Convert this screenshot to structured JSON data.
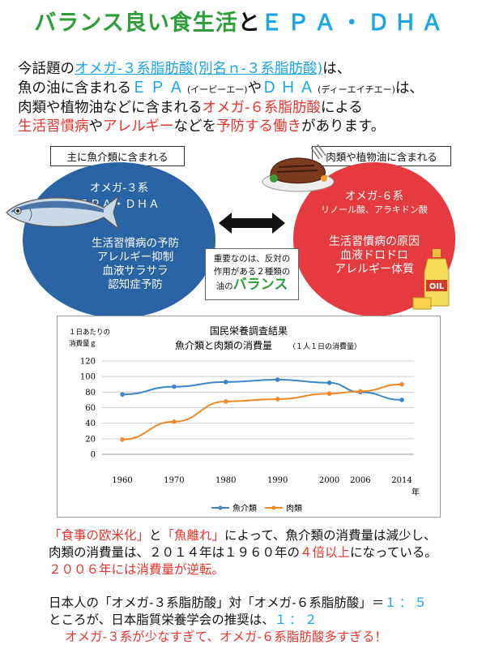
{
  "title": {
    "part1": "バランス良い食生活",
    "part2": "と",
    "part3": "ＥＰＡ・ＤＨＡ"
  },
  "intro": {
    "l1a": "今話題の",
    "l1b": "オメガ-３系脂肪酸(別名ｎ-３系脂肪酸)",
    "l1c": "は、",
    "l2a": "魚の油に含まれる",
    "l2b": "ＥＰＡ",
    "l2c": "(イーピーエー)",
    "l2d": "や",
    "l2e": "ＤＨＡ",
    "l2f": "(ディーエイチエー)",
    "l2g": "は、",
    "l3a": "肉類や植物油などに含まれる",
    "l3b": "オメガ-６系脂肪酸",
    "l3c": "による",
    "l4a": "生活習慣病",
    "l4b": "や",
    "l4c": "アレルギー",
    "l4d": "などを",
    "l4e": "予防する働き",
    "l4f": "があります。"
  },
  "left_label": "主に魚介類に含まれる",
  "right_label": "肉類や植物油に含まれる",
  "left_circle": {
    "title": "オメガ-３系",
    "subtitle": "ＥＰＡ・ＤＨＡ",
    "items": [
      "生活習慣病の予防",
      "アレルギー抑制",
      "血液サラサラ",
      "認知症予防"
    ]
  },
  "right_circle": {
    "title": "オメガ-６系",
    "subtitle": "リノール酸、アラキドン酸",
    "items": [
      "生活習慣病の原因",
      "血液ドロドロ",
      "アレルギー体質"
    ]
  },
  "center": {
    "line1": "重要なのは、反対の",
    "line2": "作用がある２種類の",
    "line3a": "油の",
    "line3b": "バランス"
  },
  "colors": {
    "fish": "#3a86c8",
    "meat": "#f0882a",
    "blue_circle": "#2a63a6",
    "red_circle": "#e63a41"
  },
  "chart_data": {
    "type": "line",
    "title": "国民栄養調査結果",
    "subtitle": "魚介類と肉類の消費量",
    "subtitle_note": "（１人１日の消費量）",
    "ylabel_line1": "１日あたりの",
    "ylabel_line2": "消費量ｇ",
    "x": [
      1960,
      1970,
      1980,
      1990,
      2000,
      2006,
      2014
    ],
    "x_labels": [
      "1960",
      "1970",
      "1980",
      "1990",
      "2000",
      "2006",
      "2014"
    ],
    "x_unit": "年",
    "ylim": [
      0,
      120
    ],
    "yticks": [
      0,
      20,
      40,
      60,
      80,
      100,
      120
    ],
    "grid": true,
    "legend_position": "bottom",
    "series": [
      {
        "name": "魚介類",
        "values": [
          77,
          87,
          93,
          96,
          92,
          80,
          70
        ]
      },
      {
        "name": "肉類",
        "values": [
          19,
          42,
          68,
          71,
          78,
          81,
          90
        ]
      }
    ]
  },
  "bottom": {
    "b1a": "「食事の欧米化」",
    "b1b": "と",
    "b1c": "「魚離れ」",
    "b1d": "によって、魚介類の消費量は減少し、",
    "b2a": "肉類の消費量は、２０１４年は１９６０年の",
    "b2b": "４倍以上",
    "b2c": "になっている。",
    "b3": "２００６年には消費量が逆転。",
    "b4a": "日本人の「オメガ-３系脂肪酸」対「オメガ-６系脂肪酸」＝",
    "b4b": "１：５",
    "b5a": "ところが、日本脂質栄養学会の推奨は、",
    "b5b": "１：２",
    "b6": "オメガ-３系が少なすぎて、オメガ-６系脂肪酸多すぎる！"
  }
}
